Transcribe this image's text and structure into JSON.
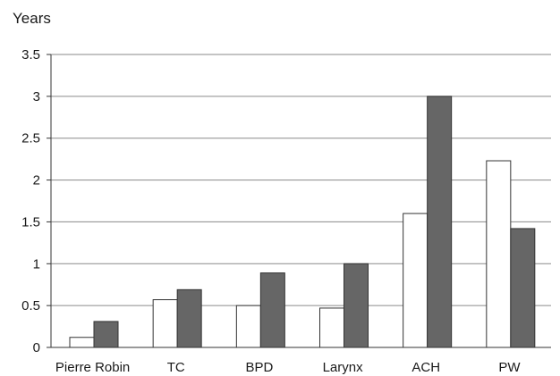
{
  "chart_data": {
    "type": "bar",
    "title": "",
    "xlabel": "",
    "ylabel": "Years",
    "ylim": [
      0,
      3.5
    ],
    "yticks": [
      "0",
      "0.5",
      "1",
      "1.5",
      "2",
      "2.5",
      "3",
      "3.5"
    ],
    "grid": true,
    "categories": [
      "Pierre Robin",
      "TC",
      "BPD",
      "Larynx",
      "ACH",
      "PW"
    ],
    "series": [
      {
        "values": [
          0.12,
          0.57,
          0.5,
          0.47,
          1.6,
          2.23
        ],
        "color": "#ffffff"
      },
      {
        "values": [
          0.31,
          0.69,
          0.89,
          1.0,
          3.0,
          1.42
        ],
        "color": "#666666"
      }
    ]
  }
}
